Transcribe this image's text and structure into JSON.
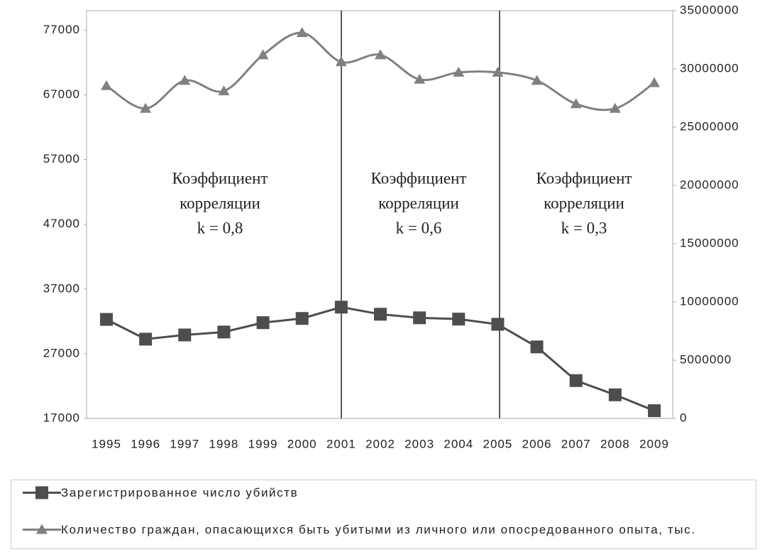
{
  "chart_data": {
    "type": "line",
    "categories": [
      "1995",
      "1996",
      "1997",
      "1998",
      "1999",
      "2000",
      "2001",
      "2002",
      "2003",
      "2004",
      "2005",
      "2006",
      "2007",
      "2008",
      "2009"
    ],
    "series": [
      {
        "name": "Зарегистрированное число убийств",
        "color": "#4d4d4d",
        "marker": "square",
        "smooth": false,
        "values": [
          32300,
          29250,
          29900,
          30350,
          31800,
          32450,
          34200,
          33100,
          32550,
          32350,
          31550,
          28050,
          22850,
          20650,
          18200
        ]
      },
      {
        "name": "Количество граждан, опасающихся быть убитыми из личного или опосредованного опыта, тыс.",
        "color": "#808080",
        "marker": "triangle",
        "smooth": true,
        "axis": "y2",
        "values": [
          28550000,
          26600000,
          29000000,
          28100000,
          31200000,
          33100000,
          30600000,
          31200000,
          29100000,
          29700000,
          29700000,
          29000000,
          27000000,
          26600000,
          28800000
        ]
      }
    ],
    "ylim": [
      17000,
      80000
    ],
    "yticks": [
      17000,
      27000,
      37000,
      47000,
      57000,
      67000,
      77000
    ],
    "y2lim": [
      0,
      35000000
    ],
    "y2ticks": [
      0,
      5000000,
      10000000,
      15000000,
      20000000,
      25000000,
      30000000,
      35000000
    ],
    "annotations": [
      {
        "lines": [
          "Коэффициент",
          "корреляции",
          "k = 0,8"
        ]
      },
      {
        "lines": [
          "Коэффициент",
          "корреляции",
          "k = 0,6"
        ]
      },
      {
        "lines": [
          "Коэффициент",
          "корреляции",
          "k = 0,3"
        ]
      }
    ],
    "legend": "bottom"
  }
}
